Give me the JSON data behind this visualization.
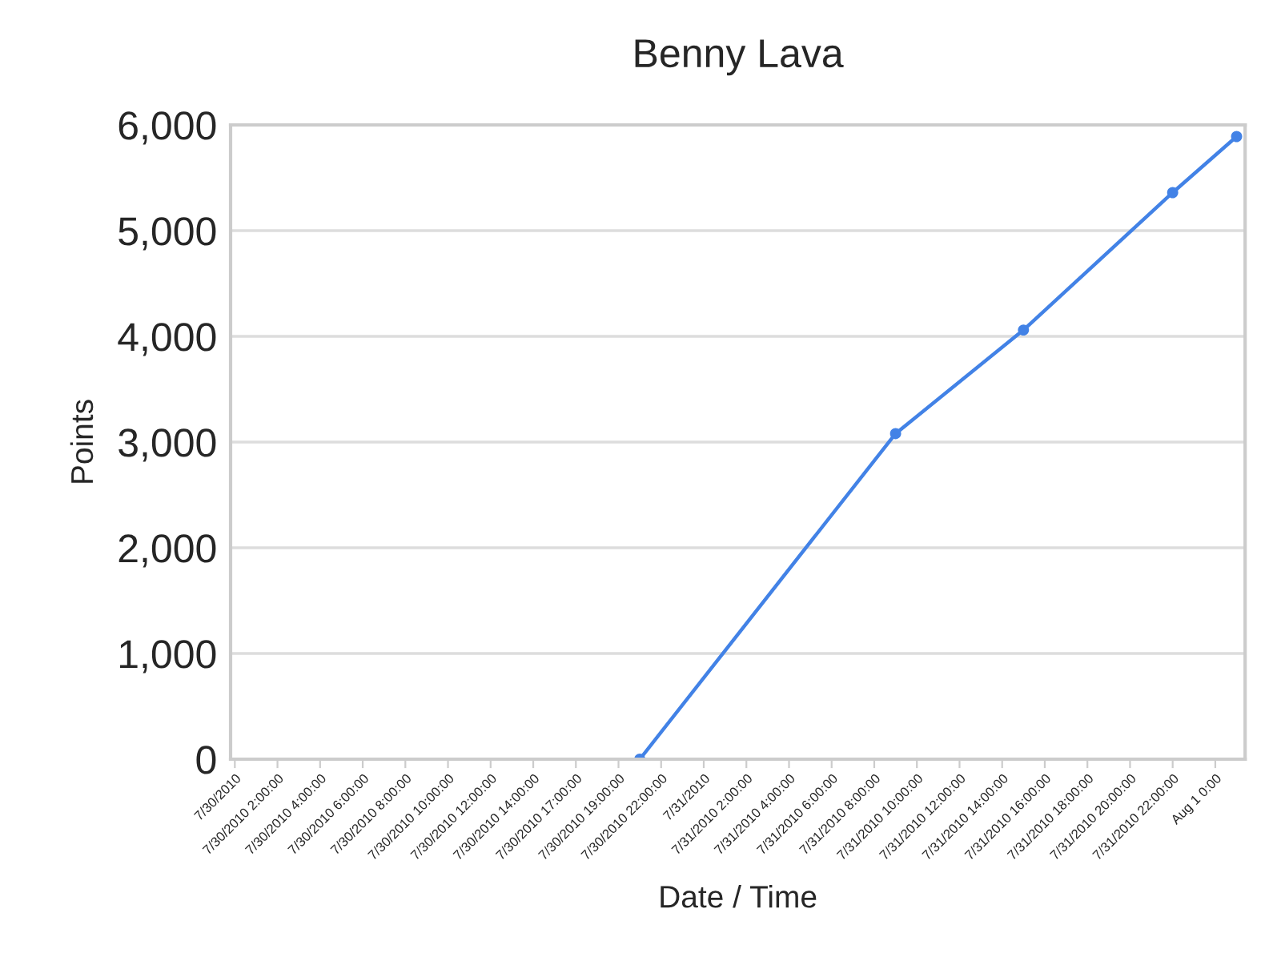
{
  "chart_data": {
    "type": "line",
    "title": "Benny Lava",
    "xlabel": "Date / Time",
    "ylabel": "Points",
    "categories": [
      "7/30/2010",
      null,
      "7/30/2010 2:00:00",
      null,
      "7/30/2010 4:00:00",
      null,
      "7/30/2010 6:00:00",
      null,
      "7/30/2010 8:00:00",
      null,
      "7/30/2010 10:00:00",
      null,
      "7/30/2010 12:00:00",
      null,
      "7/30/2010 14:00:00",
      null,
      "7/30/2010 17:00:00",
      null,
      "7/30/2010 19:00:00",
      null,
      "7/30/2010 22:00:00",
      null,
      "7/31/2010",
      null,
      "7/31/2010 2:00:00",
      null,
      "7/31/2010 4:00:00",
      null,
      "7/31/2010 6:00:00",
      null,
      "7/31/2010 8:00:00",
      null,
      "7/31/2010 10:00:00",
      null,
      "7/31/2010 12:00:00",
      null,
      "7/31/2010 14:00:00",
      null,
      "7/31/2010 16:00:00",
      null,
      "7/31/2010 18:00:00",
      null,
      "7/31/2010 20:00:00",
      null,
      "7/31/2010 22:00:00",
      null,
      "Aug 1 0:00",
      null
    ],
    "series": [
      {
        "color": "#4282e6",
        "values": [
          null,
          null,
          null,
          null,
          null,
          null,
          null,
          null,
          null,
          null,
          null,
          null,
          null,
          null,
          null,
          null,
          null,
          null,
          null,
          0,
          null,
          null,
          null,
          null,
          null,
          null,
          null,
          null,
          null,
          null,
          null,
          3080,
          null,
          null,
          null,
          null,
          null,
          4060,
          null,
          null,
          null,
          null,
          null,
          null,
          5360,
          null,
          null,
          5890
        ]
      }
    ],
    "ylim": [
      0,
      6000
    ],
    "yticks": [
      0,
      {
        "value": 1000,
        "label": "1,000"
      },
      {
        "value": 2000,
        "label": "2,000"
      },
      {
        "value": 3000,
        "label": "3,000"
      },
      {
        "value": 4000,
        "label": "4,000"
      },
      {
        "value": 5000,
        "label": "5,000"
      },
      {
        "value": 6000,
        "label": "6,000"
      }
    ],
    "grid": "y",
    "marker": "circle",
    "line_style": "solid"
  }
}
